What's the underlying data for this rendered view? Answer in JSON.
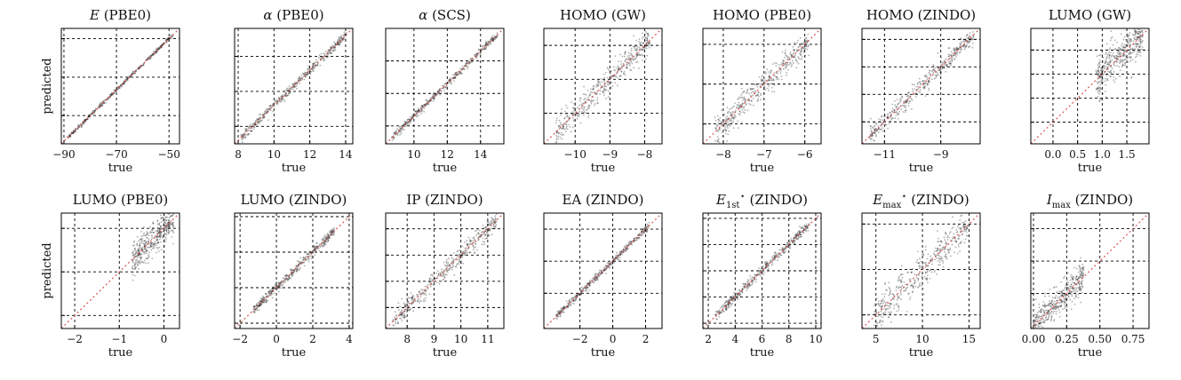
{
  "figure": {
    "ylabel_row": "predicted",
    "xlabel": "true"
  },
  "chart_data": [
    {
      "type": "scatter",
      "title": "E (PBE0)",
      "title_main": "E",
      "title_sub": "",
      "title_sup": "",
      "title_suffix": " (PBE0)",
      "title_italic": true,
      "xlabel": "true",
      "ylabel": "predicted",
      "xlim": [
        -91,
        -46
      ],
      "ylim": [
        -91,
        -46
      ],
      "xticks": [
        -90,
        -70,
        -50
      ],
      "xtick_labels": [
        "−90",
        "−70",
        "−50"
      ],
      "yticks": [
        -80,
        -65,
        -50
      ],
      "grid": true,
      "spread": 0.008,
      "dist": [
        0.05,
        0.95
      ]
    },
    {
      "type": "scatter",
      "title": "α (PBE0)",
      "title_main": "α",
      "title_sub": "",
      "title_sup": "",
      "title_suffix": " (PBE0)",
      "title_italic": true,
      "xlabel": "true",
      "ylabel": "",
      "xlim": [
        7.8,
        14.4
      ],
      "ylim": [
        7.8,
        14.4
      ],
      "xticks": [
        8,
        10,
        12,
        14
      ],
      "xtick_labels": [
        "8",
        "10",
        "12",
        "14"
      ],
      "yticks": [
        8.8,
        10.8,
        12.8
      ],
      "grid": true,
      "spread": 0.02,
      "dist": [
        0.05,
        0.95
      ]
    },
    {
      "type": "scatter",
      "title": "α (SCS)",
      "title_main": "α",
      "title_sub": "",
      "title_sup": "",
      "title_suffix": " (SCS)",
      "title_italic": true,
      "xlabel": "true",
      "ylabel": "",
      "xlim": [
        8.3,
        15.4
      ],
      "ylim": [
        8.3,
        15.4
      ],
      "xticks": [
        10,
        12,
        14
      ],
      "xtick_labels": [
        "10",
        "12",
        "14"
      ],
      "yticks": [
        9.4,
        11.4,
        13.4
      ],
      "grid": true,
      "spread": 0.015,
      "dist": [
        0.05,
        0.95
      ]
    },
    {
      "type": "scatter",
      "title": "HOMO (GW)",
      "title_main": "HOMO (GW)",
      "title_sub": "",
      "title_sup": "",
      "title_suffix": "",
      "title_italic": false,
      "xlabel": "true",
      "ylabel": "",
      "xlim": [
        -10.9,
        -7.5
      ],
      "ylim": [
        -10.9,
        -7.5
      ],
      "xticks": [
        -10,
        -9,
        -8
      ],
      "xtick_labels": [
        "−10",
        "−9",
        "−8"
      ],
      "yticks": [
        -10,
        -9,
        -8
      ],
      "grid": true,
      "spread": 0.06,
      "dist": [
        0.1,
        0.9
      ]
    },
    {
      "type": "scatter",
      "title": "HOMO (PBE0)",
      "title_main": "HOMO (PBE0)",
      "title_sub": "",
      "title_sup": "",
      "title_suffix": "",
      "title_italic": false,
      "xlabel": "true",
      "ylabel": "",
      "xlim": [
        -8.5,
        -5.6
      ],
      "ylim": [
        -8.5,
        -5.6
      ],
      "xticks": [
        -8,
        -7,
        -6
      ],
      "xtick_labels": [
        "−8",
        "−7",
        "−6"
      ],
      "yticks": [
        -8,
        -7,
        -6
      ],
      "grid": true,
      "spread": 0.06,
      "dist": [
        0.1,
        0.9
      ]
    },
    {
      "type": "scatter",
      "title": "HOMO (ZINDO)",
      "title_main": "HOMO (ZINDO)",
      "title_sub": "",
      "title_sup": "",
      "title_suffix": "",
      "title_italic": false,
      "xlabel": "true",
      "ylabel": "",
      "xlim": [
        -11.8,
        -7.6
      ],
      "ylim": [
        -11.8,
        -7.6
      ],
      "xticks": [
        -11,
        -9
      ],
      "xtick_labels": [
        "−11",
        "−9"
      ],
      "yticks": [
        -11,
        -10,
        -9,
        -8
      ],
      "grid": true,
      "spread": 0.04,
      "dist": [
        0.05,
        0.95
      ]
    },
    {
      "type": "scatter",
      "title": "LUMO (GW)",
      "title_main": "LUMO (GW)",
      "title_sub": "",
      "title_sup": "",
      "title_suffix": "",
      "title_italic": false,
      "xlabel": "true",
      "ylabel": "",
      "xlim": [
        -0.45,
        1.95
      ],
      "ylim": [
        -0.45,
        1.95
      ],
      "xticks": [
        0,
        0.5,
        1,
        1.5
      ],
      "xtick_labels": [
        "0.0",
        "0.5",
        "1.0",
        "1.5"
      ],
      "yticks": [
        0,
        0.5,
        1,
        1.5
      ],
      "grid": true,
      "spread": 0.09,
      "dist": [
        0.55,
        0.95
      ]
    },
    {
      "type": "scatter",
      "title": "LUMO (PBE0)",
      "title_main": "LUMO (PBE0)",
      "title_sub": "",
      "title_sup": "",
      "title_suffix": "",
      "title_italic": false,
      "xlabel": "true",
      "ylabel": "predicted",
      "xlim": [
        -2.3,
        0.35
      ],
      "ylim": [
        -2.3,
        0.35
      ],
      "xticks": [
        -2,
        -1,
        0
      ],
      "xtick_labels": [
        "−2",
        "−1",
        "0"
      ],
      "yticks": [
        -2,
        -1,
        0
      ],
      "grid": true,
      "spread": 0.07,
      "dist": [
        0.6,
        0.95
      ]
    },
    {
      "type": "scatter",
      "title": "LUMO (ZINDO)",
      "title_main": "LUMO (ZINDO)",
      "title_sub": "",
      "title_sup": "",
      "title_suffix": "",
      "title_italic": false,
      "xlabel": "true",
      "ylabel": "",
      "xlim": [
        -2.3,
        4.2
      ],
      "ylim": [
        -2.3,
        4.2
      ],
      "xticks": [
        -2,
        0,
        2,
        4
      ],
      "xtick_labels": [
        "−2",
        "0",
        "2",
        "4"
      ],
      "yticks": [
        -2,
        0,
        2,
        4
      ],
      "grid": true,
      "spread": 0.02,
      "dist": [
        0.15,
        0.85
      ]
    },
    {
      "type": "scatter",
      "title": "IP (ZINDO)",
      "title_main": "IP (ZINDO)",
      "title_sub": "",
      "title_sup": "",
      "title_suffix": "",
      "title_italic": false,
      "xlabel": "true",
      "ylabel": "",
      "xlim": [
        7.2,
        11.6
      ],
      "ylim": [
        7.2,
        11.6
      ],
      "xticks": [
        8,
        9,
        10,
        11
      ],
      "xtick_labels": [
        "8",
        "9",
        "10",
        "11"
      ],
      "yticks": [
        8,
        9,
        10,
        11
      ],
      "grid": true,
      "spread": 0.04,
      "dist": [
        0.05,
        0.95
      ]
    },
    {
      "type": "scatter",
      "title": "EA (ZINDO)",
      "title_main": "EA (ZINDO)",
      "title_sub": "",
      "title_sup": "",
      "title_suffix": "",
      "title_italic": false,
      "xlabel": "true",
      "ylabel": "",
      "xlim": [
        -4.2,
        3.0
      ],
      "ylim": [
        -4.2,
        3.0
      ],
      "xticks": [
        -2,
        0,
        2
      ],
      "xtick_labels": [
        "−2",
        "0",
        "2"
      ],
      "yticks": [
        -2,
        0,
        2
      ],
      "grid": true,
      "spread": 0.015,
      "dist": [
        0.1,
        0.9
      ]
    },
    {
      "type": "scatter",
      "title": "E1st* (ZINDO)",
      "title_main": "E",
      "title_sub": "1st",
      "title_sup": "⋆",
      "title_suffix": " (ZINDO)",
      "title_italic": true,
      "xlabel": "true",
      "ylabel": "",
      "xlim": [
        1.6,
        10.4
      ],
      "ylim": [
        1.6,
        10.4
      ],
      "xticks": [
        2,
        4,
        6,
        8,
        10
      ],
      "xtick_labels": [
        "2",
        "4",
        "6",
        "8",
        "10"
      ],
      "yticks": [
        2,
        4,
        6,
        8,
        10
      ],
      "grid": true,
      "spread": 0.02,
      "dist": [
        0.1,
        0.9
      ]
    },
    {
      "type": "scatter",
      "title": "Emax* (ZINDO)",
      "title_main": "E",
      "title_sub": "max",
      "title_sup": "⋆",
      "title_suffix": " (ZINDO)",
      "title_italic": true,
      "xlabel": "true",
      "ylabel": "",
      "xlim": [
        3.5,
        16.2
      ],
      "ylim": [
        3.5,
        16.2
      ],
      "xticks": [
        5,
        10,
        15
      ],
      "xtick_labels": [
        "5",
        "10",
        "15"
      ],
      "yticks": [
        5,
        10,
        15
      ],
      "grid": true,
      "spread": 0.08,
      "dist": [
        0.1,
        0.9
      ]
    },
    {
      "type": "scatter",
      "title": "Imax (ZINDO)",
      "title_main": "I",
      "title_sub": "max",
      "title_sup": "",
      "title_suffix": " (ZINDO)",
      "title_italic": true,
      "xlabel": "true",
      "ylabel": "",
      "xlim": [
        -0.02,
        0.87
      ],
      "ylim": [
        -0.02,
        0.87
      ],
      "xticks": [
        0,
        0.25,
        0.5,
        0.75
      ],
      "xtick_labels": [
        "0.00",
        "0.25",
        "0.50",
        "0.75"
      ],
      "yticks": [
        0.25,
        0.5,
        0.75
      ],
      "grid": true,
      "spread": 0.07,
      "dist": [
        0.02,
        0.45
      ]
    }
  ],
  "colors": {
    "points": "#1a1a1a",
    "diagonal": "#d9534f",
    "grid": "#000000",
    "axis": "#000000"
  }
}
